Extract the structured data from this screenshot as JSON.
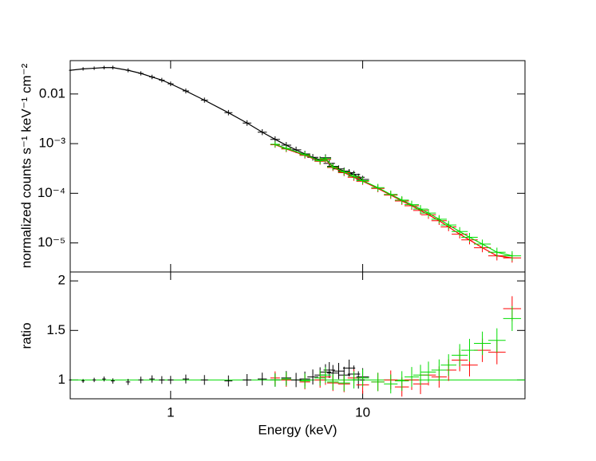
{
  "chart_data": [
    {
      "type": "scatter",
      "xlog": true,
      "ylog": true,
      "ylabel": "normalized counts s⁻¹ keV⁻¹ cm⁻²",
      "xlim": [
        0.3,
        70
      ],
      "ylim": [
        2.6e-06,
        0.047
      ],
      "yticks": [
        {
          "value": 0.01,
          "label": "0.01"
        },
        {
          "value": 0.001,
          "label": "10⁻³"
        },
        {
          "value": 0.0001,
          "label": "10⁻⁴"
        },
        {
          "value": 1e-05,
          "label": "10⁻⁵"
        }
      ],
      "series": [
        {
          "color": "#000000",
          "x": [
            0.3,
            0.35,
            0.4,
            0.45,
            0.5,
            0.6,
            0.7,
            0.8,
            0.9,
            1.0,
            1.2,
            1.5,
            2,
            2.5,
            3,
            3.5,
            4,
            4.5,
            5,
            5.5,
            6,
            6.4,
            6.7,
            7,
            7.5,
            8,
            8.5,
            9,
            9.5,
            10
          ],
          "values": [
            0.03,
            0.032,
            0.033,
            0.034,
            0.034,
            0.03,
            0.026,
            0.022,
            0.019,
            0.016,
            0.0115,
            0.0075,
            0.0042,
            0.0026,
            0.0017,
            0.00122,
            0.00093,
            0.00075,
            0.00062,
            0.00053,
            0.00047,
            0.00052,
            0.0004,
            0.00035,
            0.00031,
            0.00028,
            0.00026,
            0.00024,
            0.00021,
            0.00019
          ]
        },
        {
          "color": "#ff0000",
          "x": [
            3.5,
            4,
            5,
            6,
            6.4,
            7,
            8,
            9,
            10,
            12,
            14,
            16,
            18,
            20,
            22,
            25,
            28,
            32,
            36,
            42,
            50,
            60
          ],
          "values": [
            0.00095,
            0.00078,
            0.00058,
            0.00044,
            0.00048,
            0.00033,
            0.00026,
            0.00021,
            0.000175,
            0.000125,
            9.2e-05,
            7e-05,
            5.6e-05,
            4.5e-05,
            3.7e-05,
            2.8e-05,
            2.1e-05,
            1.5e-05,
            1.15e-05,
            8e-06,
            5.5e-06,
            5e-06
          ]
        },
        {
          "color": "#00dd00",
          "x": [
            3.5,
            4,
            5,
            6,
            6.4,
            7,
            8,
            9,
            10,
            12,
            14,
            16,
            18,
            20,
            22,
            25,
            28,
            32,
            36,
            42,
            50,
            60
          ],
          "values": [
            0.00097,
            0.0008,
            0.0006,
            0.00045,
            0.0005,
            0.00034,
            0.00027,
            0.00022,
            0.00018,
            0.00013,
            9.5e-05,
            7.3e-05,
            5.9e-05,
            4.8e-05,
            4e-05,
            3e-05,
            2.3e-05,
            1.7e-05,
            1.3e-05,
            9.5e-06,
            6.5e-06,
            5.5e-06
          ]
        }
      ]
    },
    {
      "type": "scatter",
      "xlog": true,
      "ylog": false,
      "xlabel": "Energy (keV)",
      "ylabel": "ratio",
      "xlim": [
        0.3,
        70
      ],
      "ylim": [
        0.81,
        2.09
      ],
      "xticks": [
        1,
        10
      ],
      "yticks": [
        1,
        1.5,
        2
      ],
      "series": [
        {
          "color": "#000000",
          "x": [
            0.3,
            0.35,
            0.4,
            0.45,
            0.5,
            0.6,
            0.7,
            0.8,
            0.9,
            1.0,
            1.2,
            1.5,
            2,
            2.5,
            3,
            3.5,
            4,
            4.5,
            5,
            5.5,
            6,
            6.4,
            6.7,
            7,
            7.5,
            8,
            8.5,
            9,
            9.5,
            10
          ],
          "values": [
            1.0,
            0.99,
            1.0,
            1.01,
            0.99,
            0.98,
            1.0,
            1.01,
            1.0,
            1.0,
            1.01,
            1.0,
            0.99,
            1.0,
            1.01,
            1.0,
            1.02,
            1.0,
            1.01,
            1.03,
            1.05,
            1.08,
            1.1,
            1.07,
            1.09,
            1.05,
            1.12,
            1.06,
            1.0,
            1.03
          ]
        },
        {
          "color": "#ff0000",
          "x": [
            3.5,
            4,
            5,
            6,
            6.4,
            7,
            8,
            9,
            10,
            12,
            14,
            16,
            18,
            20,
            22,
            25,
            28,
            32,
            36,
            42,
            50,
            60
          ],
          "values": [
            1.02,
            1.0,
            0.98,
            1.0,
            1.03,
            0.97,
            0.96,
            1.02,
            0.95,
            0.98,
            1.0,
            0.93,
            1.0,
            0.96,
            1.05,
            1.03,
            1.1,
            1.2,
            1.15,
            1.3,
            1.28,
            1.72
          ]
        },
        {
          "color": "#00dd00",
          "x": [
            3.5,
            4,
            5,
            6,
            6.4,
            7,
            8,
            9,
            10,
            12,
            14,
            16,
            18,
            20,
            22,
            25,
            28,
            32,
            36,
            42,
            50,
            60
          ],
          "values": [
            1.0,
            1.01,
            0.99,
            1.02,
            1.05,
            0.98,
            0.97,
            1.0,
            1.02,
            0.98,
            0.96,
            0.99,
            1.03,
            1.05,
            1.08,
            1.1,
            1.15,
            1.25,
            1.3,
            1.37,
            1.4,
            1.62
          ]
        }
      ]
    }
  ]
}
